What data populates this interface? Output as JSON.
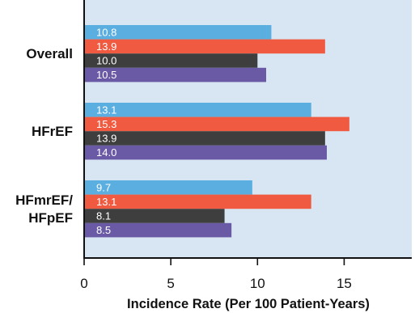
{
  "chart_data": {
    "type": "bar",
    "orientation": "horizontal",
    "categories": [
      "Overall",
      "HFrEF",
      "HFmrEF/\nHFpEF"
    ],
    "category_lines": [
      [
        "Overall"
      ],
      [
        "HFrEF"
      ],
      [
        "HFmrEF/",
        "HFpEF"
      ]
    ],
    "series": [
      {
        "color": "#5aaee0",
        "values": [
          10.8,
          13.1,
          9.7
        ]
      },
      {
        "color": "#f05a40",
        "values": [
          13.9,
          15.3,
          13.1
        ]
      },
      {
        "color": "#3e3e3e",
        "values": [
          10.0,
          13.9,
          8.1
        ]
      },
      {
        "color": "#6a5aa5",
        "values": [
          10.5,
          14.0,
          8.5
        ]
      }
    ],
    "data_labels": [
      [
        "10.8",
        "13.9",
        "10.0",
        "10.5"
      ],
      [
        "13.1",
        "15.3",
        "13.9",
        "14.0"
      ],
      [
        "9.7",
        "13.1",
        "8.1",
        "8.5"
      ]
    ],
    "xlabel": "Incidence Rate (Per 100 Patient-Years)",
    "xlim": [
      0,
      18.9
    ],
    "xticks": [
      0,
      5,
      10,
      15
    ],
    "xtick_labels": [
      "0",
      "5",
      "10",
      "15"
    ],
    "plot_background": "#d8e6f3",
    "grid": false,
    "legend": "none"
  }
}
